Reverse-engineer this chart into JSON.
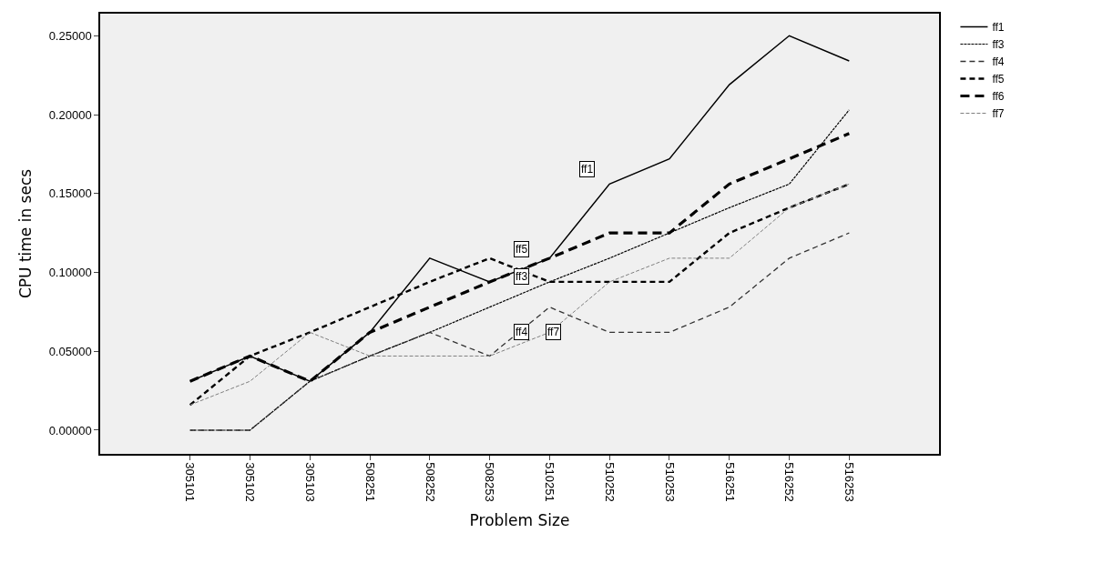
{
  "chart_data": {
    "type": "line",
    "xlabel": "Problem Size",
    "ylabel": "CPU time in secs",
    "categories": [
      "305101",
      "305102",
      "305103",
      "508251",
      "508252",
      "508253",
      "510251",
      "510252",
      "510253",
      "516251",
      "516252",
      "516253"
    ],
    "series": [
      {
        "name": "ff1",
        "color": "#000000",
        "line_style": "solid",
        "values": [
          0.031,
          0.047,
          0.031,
          0.062,
          0.109,
          0.094,
          0.109,
          0.156,
          0.172,
          0.219,
          0.25,
          0.234
        ]
      },
      {
        "name": "ff3",
        "color": "#000000",
        "line_style": "dashed",
        "values": [
          0,
          0,
          0.031,
          0.047,
          0.062,
          0.078,
          0.094,
          0.109,
          0.125,
          0.141,
          0.156,
          0.203
        ]
      },
      {
        "name": "ff4",
        "color": "#333333",
        "line_style": "dashed",
        "values": [
          0,
          0,
          0.031,
          0.047,
          0.062,
          0.047,
          0.078,
          0.062,
          0.062,
          0.078,
          0.109,
          0.125
        ]
      },
      {
        "name": "ff5",
        "color": "#000000",
        "line_style": "dashed",
        "values": [
          0.016,
          0.047,
          0.062,
          0.078,
          0.094,
          0.109,
          0.094,
          0.094,
          0.094,
          0.125,
          0.141,
          0.156
        ]
      },
      {
        "name": "ff6",
        "color": "#000000",
        "line_style": "dashed",
        "values": [
          0.031,
          0.047,
          0.031,
          0.062,
          0.078,
          0.094,
          0.109,
          0.125,
          0.125,
          0.156,
          0.172,
          0.188
        ]
      },
      {
        "name": "ff7",
        "color": "#808080",
        "line_style": "dashed",
        "values": [
          0.016,
          0.031,
          0.062,
          0.047,
          0.047,
          0.047,
          0.062,
          0.094,
          0.109,
          0.109,
          0.141,
          0.156
        ]
      }
    ],
    "annotations": [
      "ff1",
      "ff5",
      "ff3",
      "ff4",
      "ff7"
    ],
    "ylim": [
      -0.015,
      0.264
    ],
    "yticks": [
      {
        "value": 0,
        "label": "0.00000"
      },
      {
        "value": 0.05,
        "label": "0.05000"
      },
      {
        "value": 0.1,
        "label": "0.10000"
      },
      {
        "value": 0.15,
        "label": "0.15000"
      },
      {
        "value": 0.2,
        "label": "0.20000"
      },
      {
        "value": 0.25,
        "label": "0.25000"
      }
    ],
    "grid": false,
    "legend": "top right",
    "marker": "none"
  }
}
